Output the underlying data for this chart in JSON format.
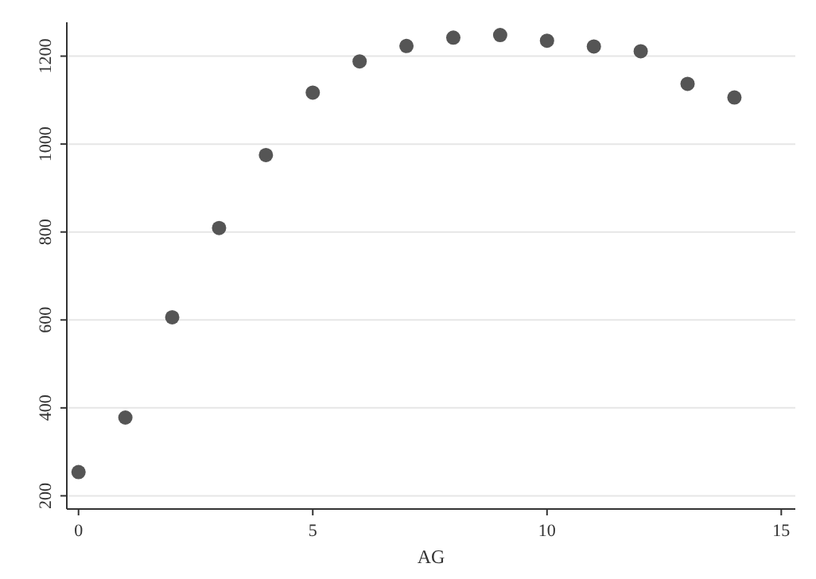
{
  "chart_data": {
    "type": "scatter",
    "xlabel": "AG",
    "x": [
      0,
      1,
      2,
      3,
      4,
      5,
      6,
      7,
      8,
      9,
      10,
      11,
      12,
      13,
      14
    ],
    "values": [
      254,
      378,
      606,
      809,
      975,
      1117,
      1188,
      1223,
      1242,
      1248,
      1235,
      1222,
      1211,
      1137,
      1106
    ],
    "color": "#555555",
    "marker": "circle",
    "xlim": [
      -0.25,
      15.3
    ],
    "xticks": [
      0,
      5,
      10,
      15
    ],
    "ylim": [
      170,
      1277
    ],
    "yticks": [
      200,
      400,
      600,
      800,
      1000,
      1200
    ],
    "grid": "y"
  }
}
